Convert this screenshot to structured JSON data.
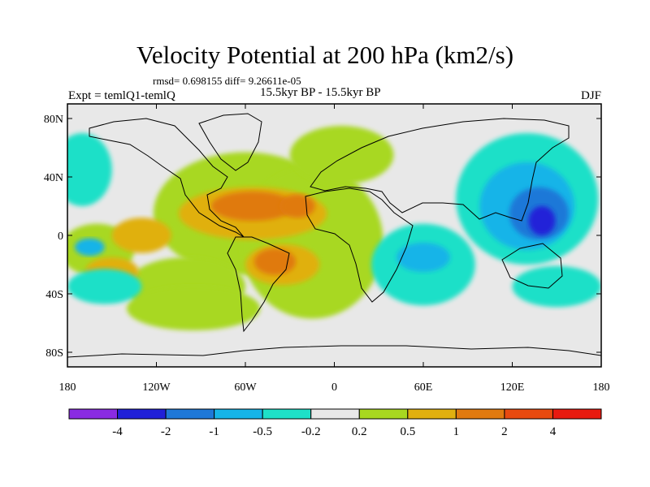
{
  "chart_data": {
    "type": "heatmap",
    "title": "Velocity Potential at 200 hPa (km2/s)",
    "stats_text": "rmsd= 0.698155  diff= 9.26611e-05",
    "left_label": "Expt = temlQ1-temlQ",
    "center_label": "15.5kyr BP - 15.5kyr BP",
    "right_label": "DJF",
    "x_ticks": [
      {
        "value": -180,
        "label": "180"
      },
      {
        "value": -120,
        "label": "120W"
      },
      {
        "value": -60,
        "label": "60W"
      },
      {
        "value": 0,
        "label": "0"
      },
      {
        "value": 60,
        "label": "60E"
      },
      {
        "value": 120,
        "label": "120E"
      },
      {
        "value": 180,
        "label": "180"
      }
    ],
    "y_ticks": [
      {
        "value": 80,
        "label": "80N"
      },
      {
        "value": 40,
        "label": "40N"
      },
      {
        "value": 0,
        "label": "0"
      },
      {
        "value": -40,
        "label": "40S"
      },
      {
        "value": -80,
        "label": "80S"
      }
    ],
    "xlim": [
      -180,
      180
    ],
    "ylim": [
      -90,
      90
    ],
    "colorbar": {
      "labels": [
        "-4",
        "-2",
        "-1",
        "-0.5",
        "-0.2",
        "0.2",
        "0.5",
        "1",
        "2",
        "4"
      ],
      "colors": [
        "#8a2be2",
        "#2020d8",
        "#1e78d8",
        "#16b4e8",
        "#1ee0c8",
        "#e8e8e8",
        "#a8d820",
        "#e0b010",
        "#e07a10",
        "#e84a10",
        "#e81a10"
      ]
    },
    "regions": [
      {
        "level": 6,
        "lon": -60,
        "lat": 15,
        "rlon": 62,
        "rlat": 42
      },
      {
        "level": 6,
        "lon": -15,
        "lat": -5,
        "rlon": 48,
        "rlat": 52
      },
      {
        "level": 6,
        "lon": -160,
        "lat": -10,
        "rlon": 25,
        "rlat": 18
      },
      {
        "level": 6,
        "lon": -100,
        "lat": -35,
        "rlon": 40,
        "rlat": 20
      },
      {
        "level": 6,
        "lon": -95,
        "lat": -50,
        "rlon": 45,
        "rlat": 15
      },
      {
        "level": 6,
        "lon": 5,
        "lat": 55,
        "rlon": 35,
        "rlat": 20
      },
      {
        "level": 7,
        "lon": -55,
        "lat": 15,
        "rlon": 50,
        "rlat": 18
      },
      {
        "level": 7,
        "lon": -130,
        "lat": 0,
        "rlon": 20,
        "rlat": 12
      },
      {
        "level": 7,
        "lon": -35,
        "lat": -20,
        "rlon": 25,
        "rlat": 14
      },
      {
        "level": 7,
        "lon": -150,
        "lat": -25,
        "rlon": 18,
        "rlat": 10
      },
      {
        "level": 8,
        "lon": -55,
        "lat": 20,
        "rlon": 28,
        "rlat": 10
      },
      {
        "level": 8,
        "lon": -25,
        "lat": 20,
        "rlon": 12,
        "rlat": 8
      },
      {
        "level": 8,
        "lon": -40,
        "lat": -18,
        "rlon": 14,
        "rlat": 9
      },
      {
        "level": 4,
        "lon": 130,
        "lat": 25,
        "rlon": 48,
        "rlat": 45
      },
      {
        "level": 4,
        "lon": 60,
        "lat": -20,
        "rlon": 35,
        "rlat": 28
      },
      {
        "level": 4,
        "lon": -170,
        "lat": 45,
        "rlon": 20,
        "rlat": 25
      },
      {
        "level": 4,
        "lon": -155,
        "lat": -35,
        "rlon": 25,
        "rlat": 12
      },
      {
        "level": 4,
        "lon": 150,
        "lat": -35,
        "rlon": 30,
        "rlat": 14
      },
      {
        "level": 3,
        "lon": 130,
        "lat": 20,
        "rlon": 32,
        "rlat": 30
      },
      {
        "level": 3,
        "lon": 60,
        "lat": -15,
        "rlon": 18,
        "rlat": 10
      },
      {
        "level": 3,
        "lon": -165,
        "lat": -8,
        "rlon": 10,
        "rlat": 6
      },
      {
        "level": 2,
        "lon": 138,
        "lat": 15,
        "rlon": 20,
        "rlat": 18
      },
      {
        "level": 1,
        "lon": 140,
        "lat": 10,
        "rlon": 9,
        "rlat": 10
      }
    ]
  }
}
